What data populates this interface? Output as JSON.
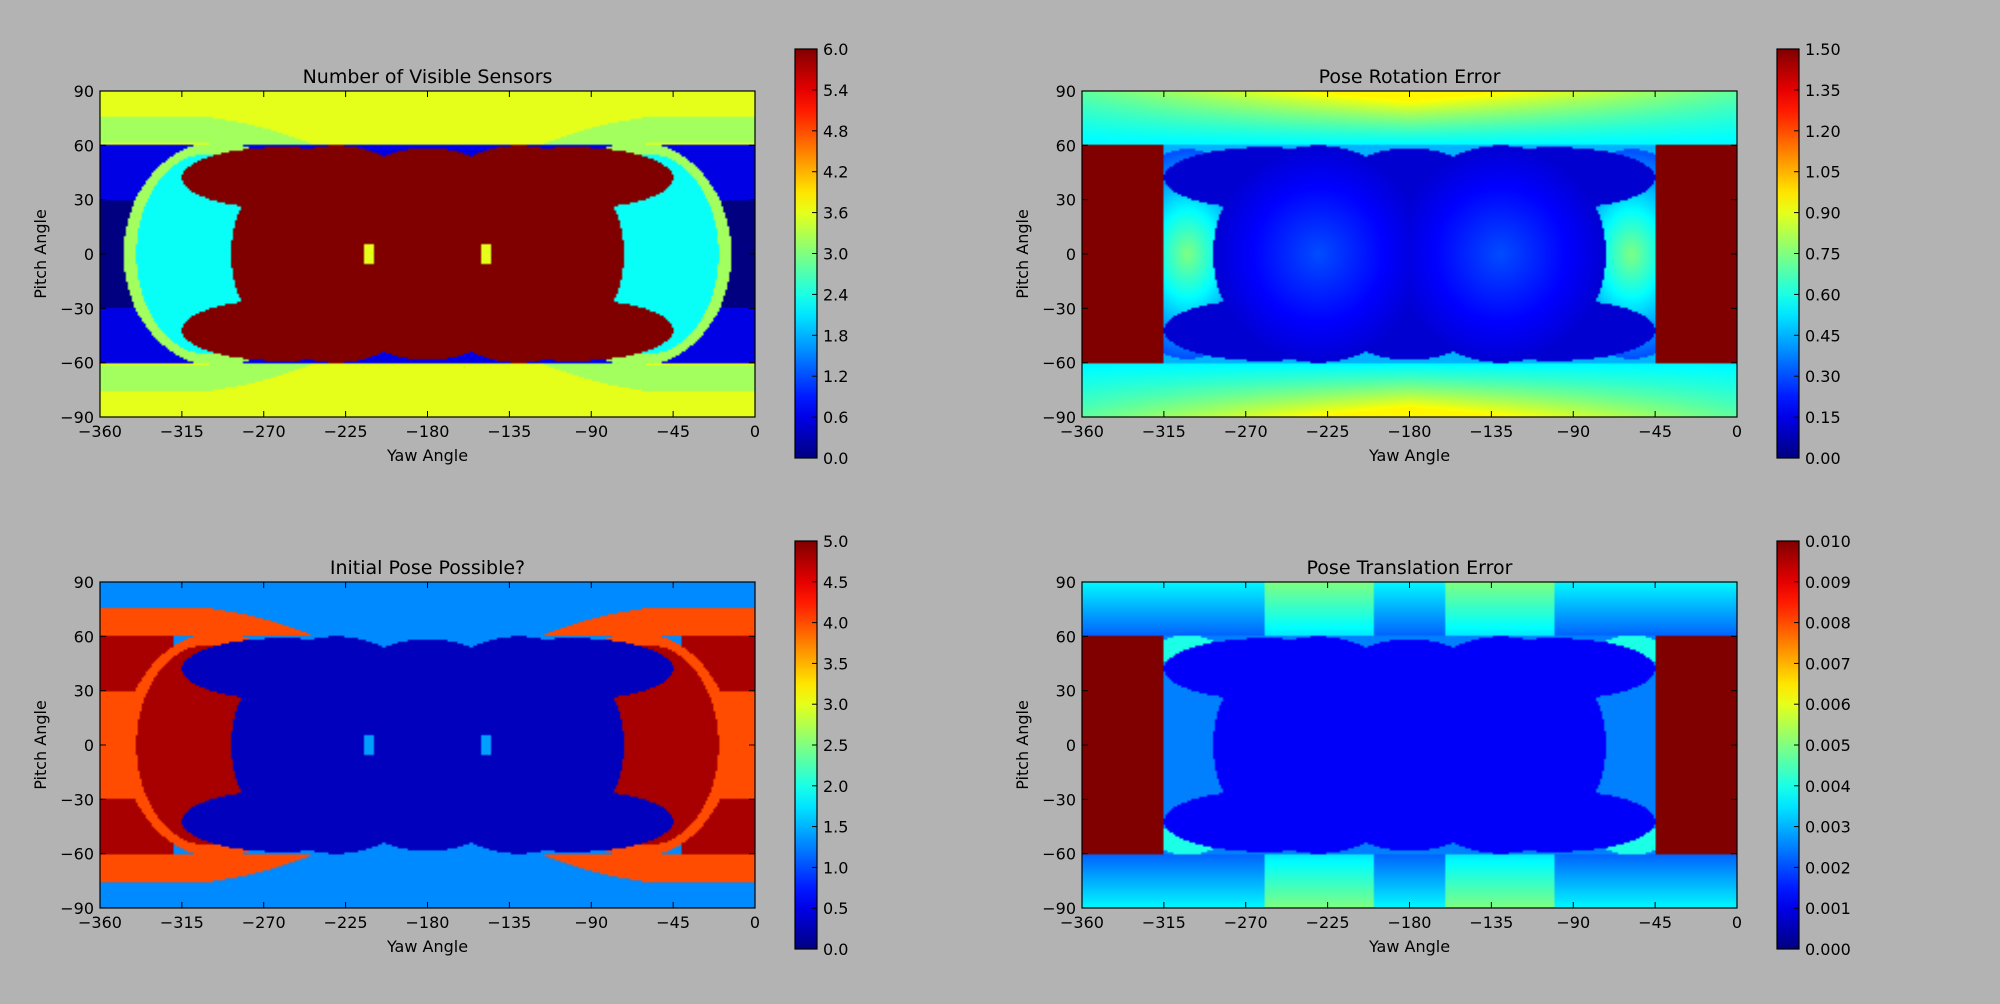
{
  "chart_data": [
    {
      "type": "heatmap",
      "title": "Number of Visible Sensors",
      "xlabel": "Yaw Angle",
      "ylabel": "Pitch Angle",
      "xlim": [
        -360,
        0
      ],
      "ylim": [
        -90,
        90
      ],
      "xticks": [
        "−360",
        "−315",
        "−270",
        "−225",
        "−180",
        "−135",
        "−90",
        "−45",
        "0"
      ],
      "yticks": [
        "90",
        "60",
        "30",
        "0",
        "−30",
        "−60",
        "−90"
      ],
      "colorbar": {
        "range": [
          0,
          6
        ],
        "ticks": [
          "6.0",
          "5.4",
          "4.8",
          "4.2",
          "3.6",
          "3.0",
          "2.4",
          "1.8",
          "1.2",
          "0.6",
          "0.0"
        ]
      },
      "colormap": "jet",
      "field": "sensors",
      "grid": false
    },
    {
      "type": "heatmap",
      "title": "Pose Rotation Error",
      "xlabel": "Yaw Angle",
      "ylabel": "Pitch Angle",
      "xlim": [
        -360,
        0
      ],
      "ylim": [
        -90,
        90
      ],
      "xticks": [
        "−360",
        "−315",
        "−270",
        "−225",
        "−180",
        "−135",
        "−90",
        "−45",
        "0"
      ],
      "yticks": [
        "90",
        "60",
        "30",
        "0",
        "−30",
        "−60",
        "−90"
      ],
      "colorbar": {
        "range": [
          0,
          1.5
        ],
        "ticks": [
          "1.50",
          "1.35",
          "1.20",
          "1.05",
          "0.90",
          "0.75",
          "0.60",
          "0.45",
          "0.30",
          "0.15",
          "0.00"
        ]
      },
      "colormap": "jet",
      "field": "rotation",
      "grid": false
    },
    {
      "type": "heatmap",
      "title": "Initial Pose Possible?",
      "xlabel": "Yaw Angle",
      "ylabel": "Pitch Angle",
      "xlim": [
        -360,
        0
      ],
      "ylim": [
        -90,
        90
      ],
      "xticks": [
        "−360",
        "−315",
        "−270",
        "−225",
        "−180",
        "−135",
        "−90",
        "−45",
        "0"
      ],
      "yticks": [
        "90",
        "60",
        "30",
        "0",
        "−30",
        "−60",
        "−90"
      ],
      "colorbar": {
        "range": [
          0,
          5
        ],
        "ticks": [
          "5.0",
          "4.5",
          "4.0",
          "3.5",
          "3.0",
          "2.5",
          "2.0",
          "1.5",
          "1.0",
          "0.5",
          "0.0"
        ]
      },
      "colormap": "jet",
      "field": "initial",
      "grid": false
    },
    {
      "type": "heatmap",
      "title": "Pose Translation Error",
      "xlabel": "Yaw Angle",
      "ylabel": "Pitch Angle",
      "xlim": [
        -360,
        0
      ],
      "ylim": [
        -90,
        90
      ],
      "xticks": [
        "−360",
        "−315",
        "−270",
        "−225",
        "−180",
        "−135",
        "−90",
        "−45",
        "0"
      ],
      "yticks": [
        "90",
        "60",
        "30",
        "0",
        "−30",
        "−60",
        "−90"
      ],
      "colorbar": {
        "range": [
          0,
          0.01
        ],
        "ticks": [
          "0.010",
          "0.009",
          "0.008",
          "0.007",
          "0.006",
          "0.005",
          "0.004",
          "0.003",
          "0.002",
          "0.001",
          "0.000"
        ]
      },
      "colormap": "jet",
      "field": "translation",
      "grid": false
    }
  ]
}
